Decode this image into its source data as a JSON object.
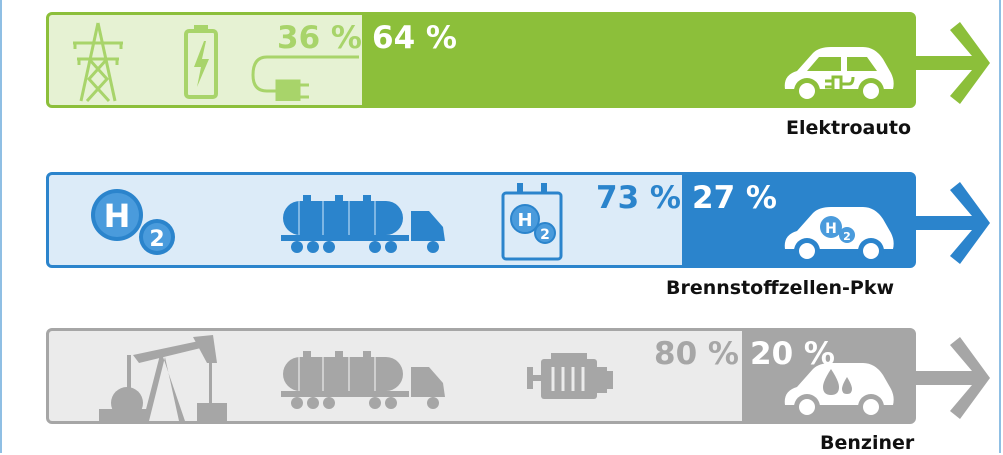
{
  "chart_data": {
    "type": "bar",
    "orientation": "horizontal",
    "stacked": true,
    "categories": [
      "Elektroauto",
      "Brennstoffzellen-Pkw",
      "Benziner"
    ],
    "series": [
      {
        "values": [
          36,
          73,
          80
        ],
        "display": [
          "36 %",
          "73 %",
          "80 %"
        ]
      },
      {
        "values": [
          64,
          27,
          20
        ],
        "display": [
          "64 %",
          "27 %",
          "20 %"
        ]
      }
    ],
    "unit": "%",
    "colors": {
      "elektro_main": "#8cbf3a",
      "elektro_loss": "#e6f2d3",
      "h2_main": "#2b84cc",
      "h2_loss": "#dcebf8",
      "benzin_main": "#a6a6a6",
      "benzin_loss": "#ebebeb"
    }
  },
  "icons": {
    "row1": [
      "power-pylon-icon",
      "battery-icon",
      "charging-plug-icon",
      "electric-car-icon"
    ],
    "row2": [
      "hydrogen-molecule-icon",
      "tanker-truck-icon",
      "hydrogen-tank-icon",
      "fuel-cell-car-icon"
    ],
    "row3": [
      "oil-pump-icon",
      "tanker-truck-icon",
      "combustion-engine-icon",
      "petrol-car-icon"
    ]
  }
}
